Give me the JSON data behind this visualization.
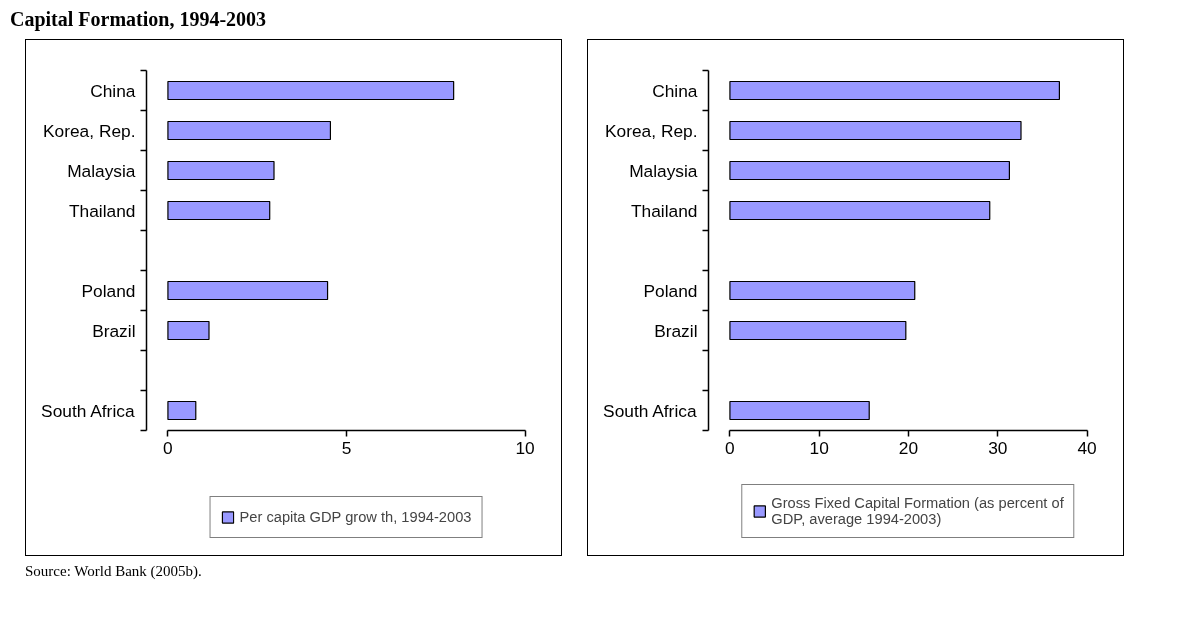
{
  "chart_data": [
    {
      "type": "bar",
      "orientation": "horizontal",
      "title": "Capital Formation, 1994-2003",
      "annotations": [
        "Source: World Bank (2005b)."
      ],
      "categories": [
        "China",
        "Korea, Rep.",
        "Malaysia",
        "Thailand",
        null,
        "Poland",
        "Brazil",
        null,
        "South Africa"
      ],
      "series": [
        {
          "name": "Per capita GDP grow th, 1994-2003",
          "color": "#9999ff",
          "values": [
            8.0,
            4.55,
            2.97,
            2.85,
            null,
            4.47,
            1.15,
            null,
            0.78
          ]
        }
      ],
      "xlim": [
        0,
        10
      ],
      "xticks": [
        0,
        5,
        10
      ],
      "legend": "bottom"
    },
    {
      "type": "bar",
      "orientation": "horizontal",
      "categories": [
        "China",
        "Korea, Rep.",
        "Malaysia",
        "Thailand",
        null,
        "Poland",
        "Brazil",
        null,
        "South Africa"
      ],
      "series": [
        {
          "name": "Gross Fixed Capital Formation (as percent of GDP, average 1994-2003)",
          "color": "#9999ff",
          "values": [
            36.9,
            32.6,
            31.3,
            29.1,
            null,
            20.7,
            19.7,
            null,
            15.6
          ]
        }
      ],
      "xlim": [
        0,
        40
      ],
      "xticks": [
        0,
        10,
        20,
        30,
        40
      ],
      "legend": "bottom"
    }
  ]
}
